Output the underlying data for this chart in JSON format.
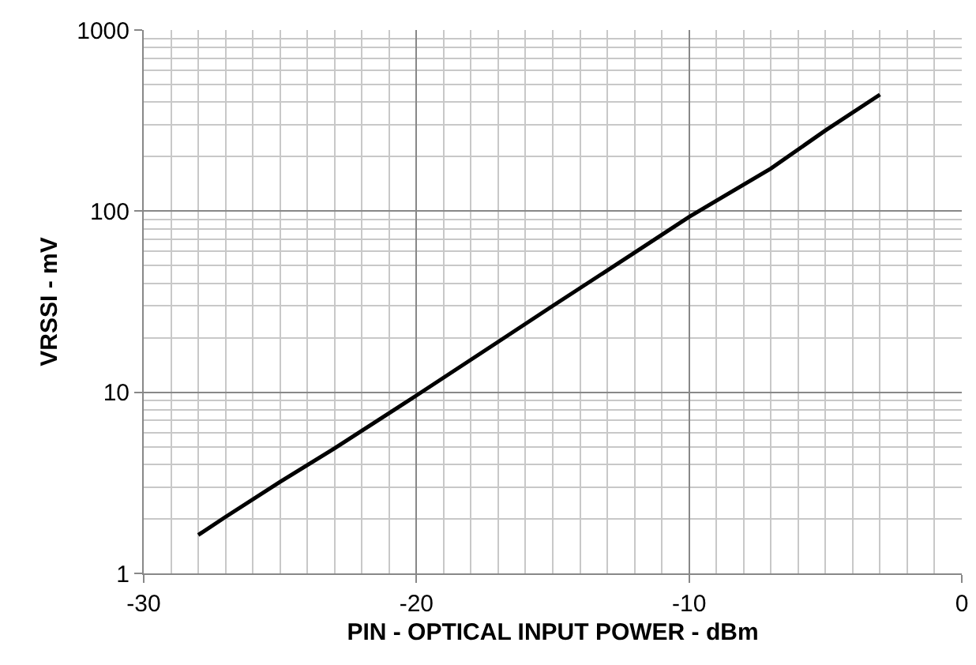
{
  "chart_data": {
    "type": "line",
    "xlabel": "PIN - OPTICAL INPUT POWER - dBm",
    "ylabel": "VRSSI - mV",
    "x": [
      -28,
      -27,
      -25,
      -23,
      -20,
      -17,
      -15,
      -12,
      -10,
      -7,
      -5,
      -3
    ],
    "series": [
      {
        "color": "#000000",
        "values": [
          1.63,
          2.05,
          3.2,
          4.9,
          9.6,
          19,
          30,
          59,
          93,
          172,
          279,
          440
        ]
      }
    ],
    "xlim": [
      -30,
      0
    ],
    "xticks": [
      -30,
      -20,
      -10,
      0
    ],
    "ylim": [
      1,
      1000
    ],
    "yticks": [
      1,
      10,
      100,
      1000
    ],
    "log": "y",
    "grid": true,
    "marker": "none",
    "line_style": "solid"
  }
}
